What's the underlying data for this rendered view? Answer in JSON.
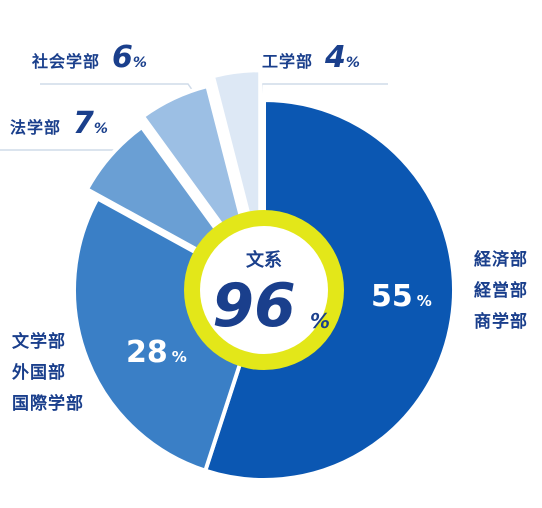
{
  "chart_data": {
    "type": "pie",
    "unit": "%",
    "slices": [
      {
        "label": "経済部 経営部 商学部",
        "value": 55,
        "color": "#0b57b2"
      },
      {
        "label": "文学部 外国部 国際学部",
        "value": 28,
        "color": "#3a7fc6"
      },
      {
        "label": "法学部",
        "value": 7,
        "color": "#6a9fd4"
      },
      {
        "label": "社会学部",
        "value": 6,
        "color": "#9cbfe4"
      },
      {
        "label": "工学部",
        "value": 4,
        "color": "#dde8f5"
      }
    ],
    "center": {
      "label": "文系",
      "value": "96",
      "unit": "%",
      "ring_color": "#e3e719"
    }
  },
  "labels": {
    "right_lines": [
      "経済部",
      "経営部",
      "商学部"
    ],
    "left_lines": [
      "文学部",
      "外国部",
      "国際学部"
    ],
    "law": {
      "name": "法学部",
      "value": "7",
      "unit": "%"
    },
    "social": {
      "name": "社会学部",
      "value": "6",
      "unit": "%"
    },
    "eng": {
      "name": "工学部",
      "value": "4",
      "unit": "%"
    }
  }
}
